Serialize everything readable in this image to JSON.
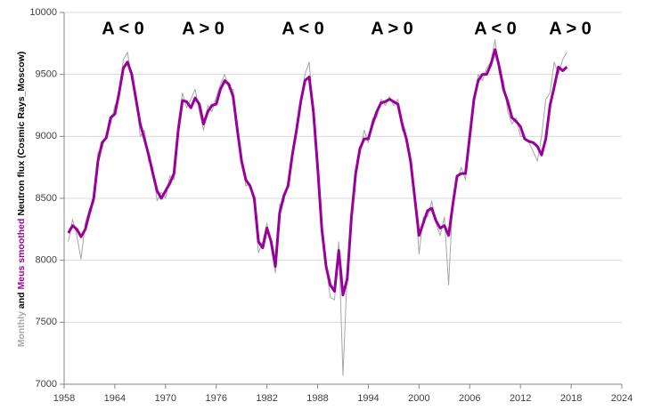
{
  "chart_data": {
    "type": "line",
    "y_label_parts": [
      "Monthly",
      "and",
      "Meus smoothed",
      "Neutron flux (Cosmic Rays_Moscow)"
    ],
    "annotations": [
      "A < 0",
      "A > 0",
      "A < 0",
      "A > 0",
      "A < 0",
      "A > 0"
    ],
    "xlim": [
      1958,
      2024
    ],
    "xticks": [
      1958,
      1964,
      1970,
      1976,
      1982,
      1988,
      1994,
      2000,
      2006,
      2012,
      2018,
      2024
    ],
    "ylim": [
      7000,
      10000
    ],
    "yticks": [
      7000,
      7500,
      8000,
      8500,
      9000,
      9500,
      10000
    ],
    "grid": true,
    "x": [
      1958.5,
      1959,
      1959.5,
      1960,
      1960.5,
      1961,
      1961.5,
      1962,
      1962.5,
      1963,
      1963.5,
      1964,
      1964.5,
      1965,
      1965.5,
      1966,
      1966.5,
      1967,
      1967.5,
      1968,
      1968.5,
      1969,
      1969.5,
      1970,
      1970.5,
      1971,
      1971.5,
      1972,
      1972.5,
      1973,
      1973.5,
      1974,
      1974.5,
      1975,
      1975.5,
      1976,
      1976.5,
      1977,
      1977.5,
      1978,
      1978.5,
      1979,
      1979.5,
      1980,
      1980.5,
      1981,
      1981.5,
      1982,
      1982.5,
      1983,
      1983.5,
      1984,
      1984.5,
      1985,
      1985.5,
      1986,
      1986.5,
      1987,
      1987.5,
      1988,
      1988.5,
      1989,
      1989.5,
      1990,
      1990.5,
      1991,
      1991.5,
      1992,
      1992.5,
      1993,
      1993.5,
      1994,
      1994.5,
      1995,
      1995.5,
      1996,
      1996.5,
      1997,
      1997.5,
      1998,
      1998.5,
      1999,
      1999.5,
      2000,
      2000.5,
      2001,
      2001.5,
      2002,
      2002.5,
      2003,
      2003.5,
      2004,
      2004.5,
      2005,
      2005.5,
      2006,
      2006.5,
      2007,
      2007.5,
      2008,
      2008.5,
      2009,
      2009.5,
      2010,
      2010.5,
      2011,
      2011.5,
      2012,
      2012.5,
      2013,
      2013.5,
      2014,
      2014.5,
      2015,
      2015.5,
      2016,
      2016.5,
      2017,
      2017.5
    ],
    "series": [
      {
        "color": "#a6a6a6",
        "width": 1,
        "values": [
          8150,
          8330,
          8200,
          8010,
          8300,
          8420,
          8460,
          8870,
          8900,
          9030,
          9100,
          9250,
          9300,
          9620,
          9680,
          9450,
          9350,
          9000,
          9050,
          8800,
          8750,
          8480,
          8550,
          8500,
          8680,
          8650,
          9100,
          9350,
          9230,
          9300,
          9380,
          9200,
          9050,
          9250,
          9200,
          9320,
          9420,
          9500,
          9380,
          9380,
          9000,
          8850,
          8600,
          8620,
          8450,
          8060,
          8150,
          8300,
          8100,
          7900,
          8450,
          8470,
          8650,
          8800,
          9100,
          9250,
          9500,
          9600,
          9150,
          8800,
          8200,
          7950,
          7700,
          7680,
          8150,
          7070,
          7900,
          8300,
          8750,
          8850,
          9050,
          8950,
          9150,
          9150,
          9300,
          9250,
          9320,
          9250,
          9300,
          9050,
          9000,
          8750,
          8550,
          8050,
          8350,
          8350,
          8480,
          8300,
          8200,
          8350,
          7800,
          8500,
          8650,
          8750,
          8650,
          9050,
          9280,
          9500,
          9450,
          9550,
          9600,
          9780,
          9500,
          9450,
          9200,
          9100,
          9150,
          9000,
          9000,
          8950,
          8880,
          8800,
          9000,
          9300,
          9350,
          9600,
          9500,
          9620,
          9680
        ]
      },
      {
        "color": "#990099",
        "width": 3,
        "values": [
          8220,
          8280,
          8250,
          8190,
          8250,
          8380,
          8500,
          8800,
          8950,
          8990,
          9150,
          9180,
          9350,
          9550,
          9600,
          9500,
          9300,
          9100,
          8980,
          8850,
          8700,
          8560,
          8500,
          8560,
          8620,
          8700,
          9050,
          9290,
          9280,
          9230,
          9310,
          9260,
          9100,
          9200,
          9250,
          9260,
          9380,
          9450,
          9420,
          9320,
          9050,
          8800,
          8650,
          8600,
          8500,
          8150,
          8100,
          8260,
          8150,
          7950,
          8380,
          8520,
          8600,
          8850,
          9050,
          9280,
          9450,
          9480,
          9200,
          8750,
          8250,
          7950,
          7800,
          7750,
          8080,
          7720,
          7850,
          8350,
          8700,
          8900,
          8980,
          8980,
          9100,
          9200,
          9270,
          9280,
          9300,
          9280,
          9260,
          9100,
          8980,
          8800,
          8500,
          8200,
          8300,
          8400,
          8420,
          8320,
          8260,
          8280,
          8200,
          8450,
          8680,
          8700,
          8700,
          9000,
          9300,
          9450,
          9500,
          9500,
          9580,
          9700,
          9560,
          9380,
          9280,
          9150,
          9120,
          9080,
          8980,
          8960,
          8950,
          8920,
          8850,
          8980,
          9250,
          9400,
          9560,
          9530,
          9560
        ]
      }
    ]
  }
}
